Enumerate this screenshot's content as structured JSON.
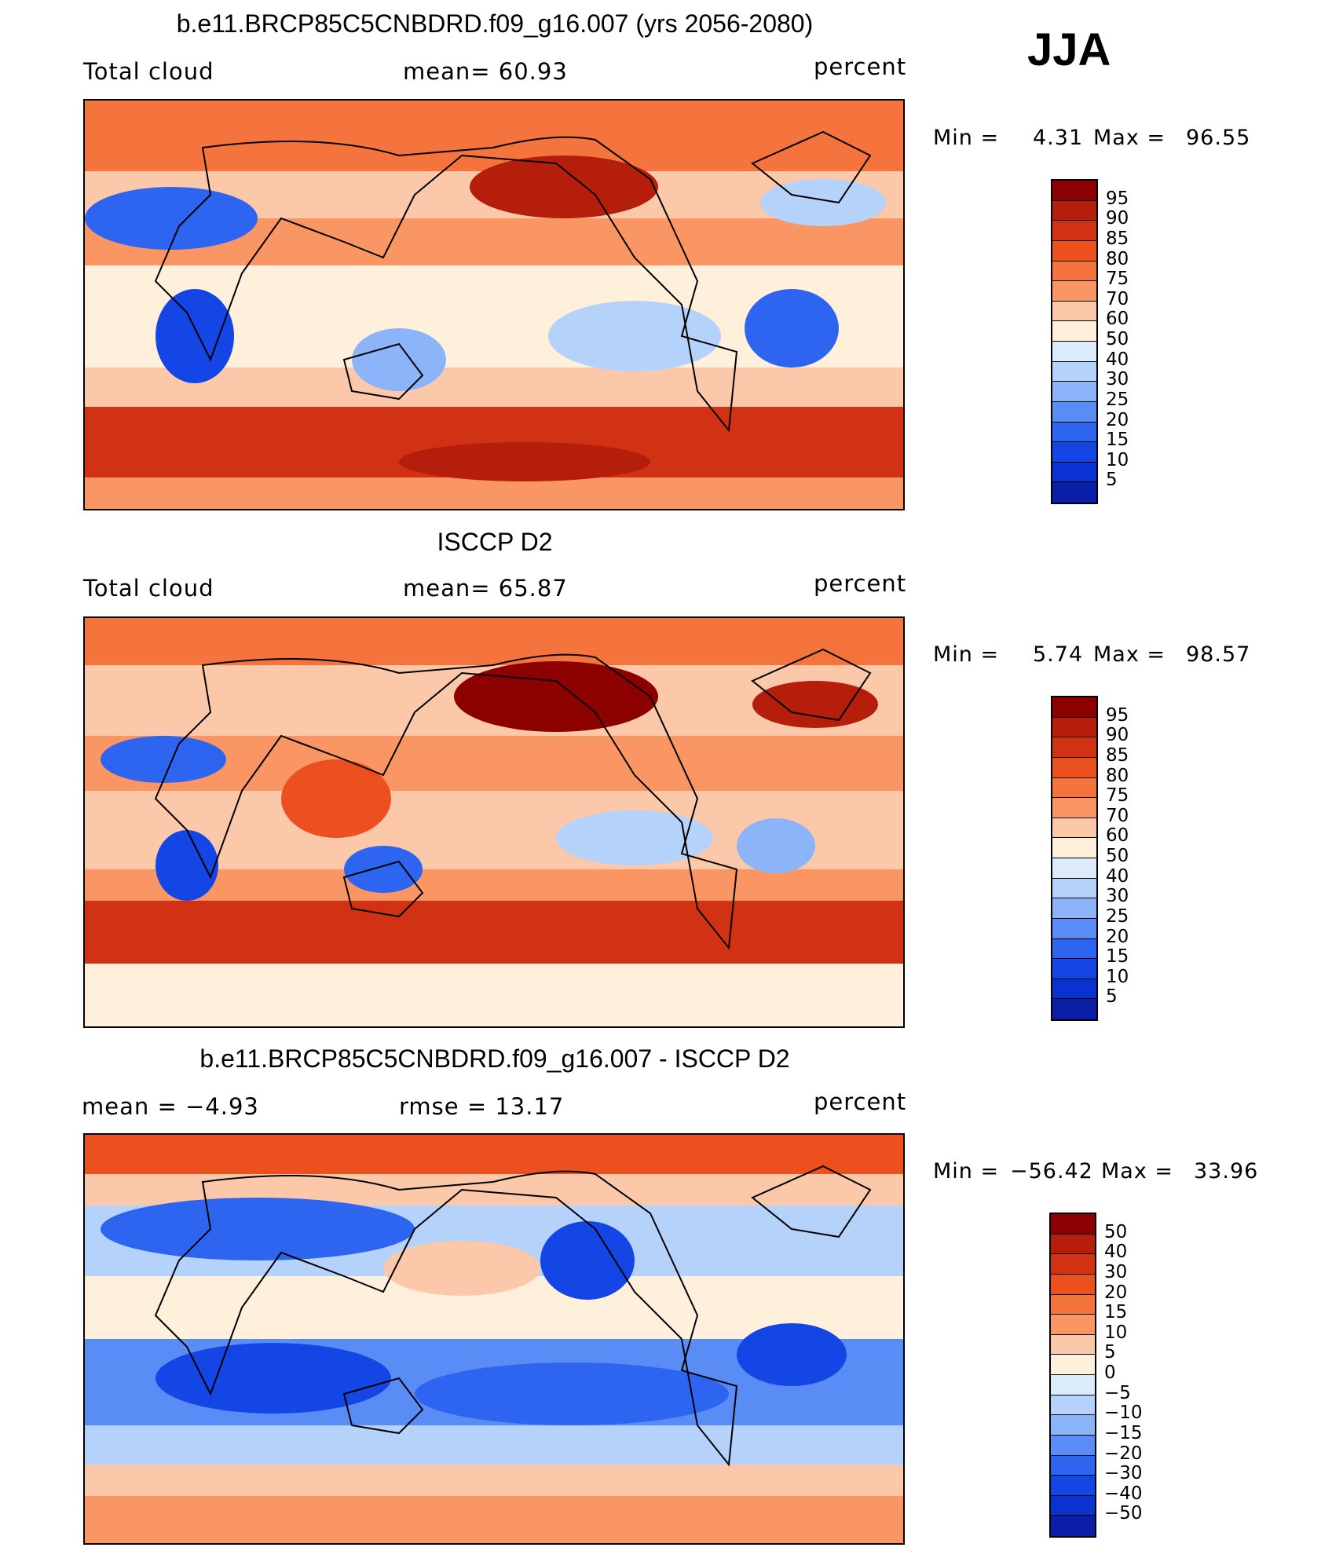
{
  "season": "JJA",
  "colors": {
    "abs": [
      "#000066",
      "#0a1ea8",
      "#0a32d2",
      "#1446e6",
      "#2d64f0",
      "#5a8cf5",
      "#8cb4f8",
      "#b4d2fa",
      "#dcebfc",
      "#fff0dc",
      "#fcc8aa",
      "#fa9664",
      "#f5733c",
      "#eb501e",
      "#d23214",
      "#b41e0a",
      "#8c0000"
    ],
    "diff": [
      "#000066",
      "#0a1ea8",
      "#0a32d2",
      "#1446e6",
      "#2d64f0",
      "#5a8cf5",
      "#8cb4f8",
      "#b4d2fa",
      "#dcebfc",
      "#fff0dc",
      "#fcc8aa",
      "#fa9664",
      "#f5733c",
      "#eb501e",
      "#d23214",
      "#b41e0a",
      "#8c0000"
    ]
  },
  "panels": [
    {
      "title": "b.e11.BRCP85C5CNBDRD.f09_g16.007 (yrs 2056-2080)",
      "left": "Total cloud",
      "center": "mean=   60.93",
      "right": "percent",
      "min_label": "Min =",
      "min_value": "4.31",
      "max_label": "Max =",
      "max_value": "96.55",
      "levels": [
        "95",
        "90",
        "85",
        "80",
        "75",
        "70",
        "60",
        "50",
        "40",
        "30",
        "25",
        "20",
        "15",
        "10",
        "5"
      ],
      "palette": "abs"
    },
    {
      "title": "ISCCP D2",
      "left": "Total cloud",
      "center": "mean=   65.87",
      "right": "percent",
      "min_label": "Min =",
      "min_value": "5.74",
      "max_label": "Max =",
      "max_value": "98.57",
      "levels": [
        "95",
        "90",
        "85",
        "80",
        "75",
        "70",
        "60",
        "50",
        "40",
        "30",
        "25",
        "20",
        "15",
        "10",
        "5"
      ],
      "palette": "abs"
    },
    {
      "title": "b.e11.BRCP85C5CNBDRD.f09_g16.007 - ISCCP D2",
      "left": "mean =   −4.93",
      "center": "rmse =   13.17",
      "right": "percent",
      "min_label": "Min =",
      "min_value": "−56.42",
      "max_label": "Max =",
      "max_value": "33.96",
      "levels": [
        "50",
        "40",
        "30",
        "20",
        "15",
        "10",
        "5",
        "0",
        "−5",
        "−10",
        "−15",
        "−20",
        "−30",
        "−40",
        "−50"
      ],
      "palette": "diff"
    }
  ]
}
